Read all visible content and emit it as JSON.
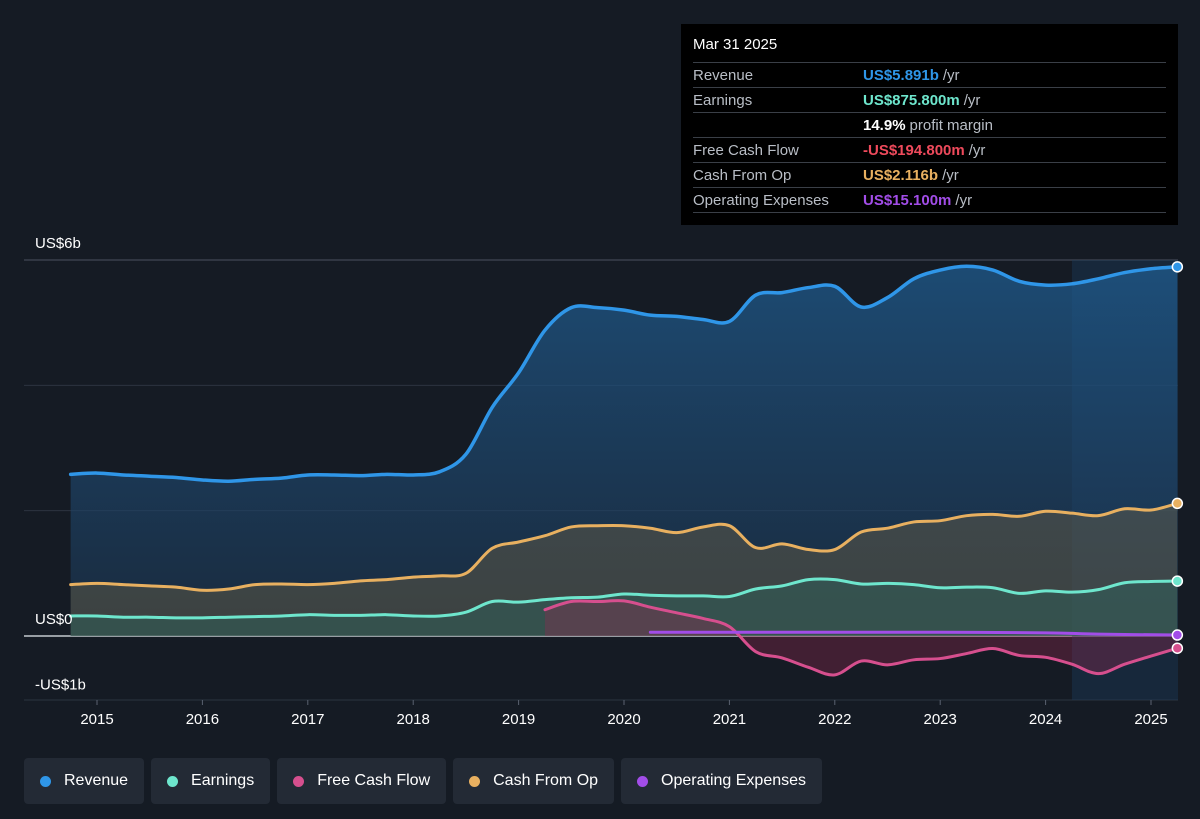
{
  "tooltip": {
    "date": "Mar 31 2025",
    "rows": [
      {
        "label": "Revenue",
        "value": "US$5.891b",
        "suffix": "/yr",
        "color": "#2f96e8"
      },
      {
        "label": "Earnings",
        "value": "US$875.800m",
        "suffix": "/yr",
        "color": "#6ee6cd"
      },
      {
        "label": "",
        "value": "14.9%",
        "suffix": "profit margin",
        "color": "#ffffff"
      },
      {
        "label": "Free Cash Flow",
        "value": "-US$194.800m",
        "suffix": "/yr",
        "color": "#ef4a5c"
      },
      {
        "label": "Cash From Op",
        "value": "US$2.116b",
        "suffix": "/yr",
        "color": "#e8b060"
      },
      {
        "label": "Operating Expenses",
        "value": "US$15.100m",
        "suffix": "/yr",
        "color": "#a24de8"
      }
    ]
  },
  "legend": [
    {
      "label": "Revenue",
      "color": "#2f96e8"
    },
    {
      "label": "Earnings",
      "color": "#6ee6cd"
    },
    {
      "label": "Free Cash Flow",
      "color": "#d64f8e"
    },
    {
      "label": "Cash From Op",
      "color": "#e8b060"
    },
    {
      "label": "Operating Expenses",
      "color": "#a24de8"
    }
  ],
  "chart_data": {
    "type": "area",
    "y_tick_labels": [
      "US$6b",
      "US$0",
      "-US$1b"
    ],
    "ylim": [
      -1,
      6
    ],
    "xlim": [
      2014.45,
      2025.25
    ],
    "x_ticks": [
      2015,
      2016,
      2017,
      2018,
      2019,
      2020,
      2021,
      2022,
      2023,
      2024,
      2025
    ],
    "x_tick_labels": [
      "2015",
      "2016",
      "2017",
      "2018",
      "2019",
      "2020",
      "2021",
      "2022",
      "2023",
      "2024",
      "2025"
    ],
    "forecast_start": 2024.25,
    "series": [
      {
        "name": "Revenue",
        "color": "#2f96e8",
        "fill": true,
        "points": [
          [
            2014.75,
            2.58
          ],
          [
            2015.0,
            2.6
          ],
          [
            2015.25,
            2.57
          ],
          [
            2015.5,
            2.55
          ],
          [
            2015.75,
            2.53
          ],
          [
            2016.0,
            2.49
          ],
          [
            2016.25,
            2.47
          ],
          [
            2016.5,
            2.5
          ],
          [
            2016.75,
            2.52
          ],
          [
            2017.0,
            2.57
          ],
          [
            2017.25,
            2.57
          ],
          [
            2017.5,
            2.56
          ],
          [
            2017.75,
            2.58
          ],
          [
            2018.0,
            2.57
          ],
          [
            2018.25,
            2.62
          ],
          [
            2018.5,
            2.9
          ],
          [
            2018.75,
            3.65
          ],
          [
            2019.0,
            4.2
          ],
          [
            2019.25,
            4.88
          ],
          [
            2019.5,
            5.24
          ],
          [
            2019.75,
            5.24
          ],
          [
            2020.0,
            5.2
          ],
          [
            2020.25,
            5.12
          ],
          [
            2020.5,
            5.1
          ],
          [
            2020.75,
            5.05
          ],
          [
            2021.0,
            5.02
          ],
          [
            2021.25,
            5.44
          ],
          [
            2021.5,
            5.48
          ],
          [
            2021.75,
            5.56
          ],
          [
            2022.0,
            5.58
          ],
          [
            2022.25,
            5.25
          ],
          [
            2022.5,
            5.4
          ],
          [
            2022.75,
            5.7
          ],
          [
            2023.0,
            5.84
          ],
          [
            2023.25,
            5.9
          ],
          [
            2023.5,
            5.84
          ],
          [
            2023.75,
            5.66
          ],
          [
            2024.0,
            5.6
          ],
          [
            2024.25,
            5.62
          ],
          [
            2024.5,
            5.7
          ],
          [
            2024.75,
            5.8
          ],
          [
            2025.0,
            5.86
          ],
          [
            2025.25,
            5.891
          ]
        ]
      },
      {
        "name": "Cash From Op",
        "color": "#e8b060",
        "fill": true,
        "points": [
          [
            2014.75,
            0.82
          ],
          [
            2015.0,
            0.84
          ],
          [
            2015.25,
            0.82
          ],
          [
            2015.5,
            0.8
          ],
          [
            2015.75,
            0.78
          ],
          [
            2016.0,
            0.73
          ],
          [
            2016.25,
            0.75
          ],
          [
            2016.5,
            0.82
          ],
          [
            2016.75,
            0.83
          ],
          [
            2017.0,
            0.82
          ],
          [
            2017.25,
            0.84
          ],
          [
            2017.5,
            0.88
          ],
          [
            2017.75,
            0.9
          ],
          [
            2018.0,
            0.94
          ],
          [
            2018.25,
            0.96
          ],
          [
            2018.5,
            1.0
          ],
          [
            2018.75,
            1.4
          ],
          [
            2019.0,
            1.5
          ],
          [
            2019.25,
            1.6
          ],
          [
            2019.5,
            1.74
          ],
          [
            2019.75,
            1.76
          ],
          [
            2020.0,
            1.76
          ],
          [
            2020.25,
            1.72
          ],
          [
            2020.5,
            1.65
          ],
          [
            2020.75,
            1.74
          ],
          [
            2021.0,
            1.76
          ],
          [
            2021.25,
            1.41
          ],
          [
            2021.5,
            1.47
          ],
          [
            2021.75,
            1.38
          ],
          [
            2022.0,
            1.38
          ],
          [
            2022.25,
            1.66
          ],
          [
            2022.5,
            1.72
          ],
          [
            2022.75,
            1.82
          ],
          [
            2023.0,
            1.84
          ],
          [
            2023.25,
            1.92
          ],
          [
            2023.5,
            1.94
          ],
          [
            2023.75,
            1.91
          ],
          [
            2024.0,
            1.99
          ],
          [
            2024.25,
            1.96
          ],
          [
            2024.5,
            1.92
          ],
          [
            2024.75,
            2.03
          ],
          [
            2025.0,
            2.01
          ],
          [
            2025.25,
            2.116
          ]
        ]
      },
      {
        "name": "Earnings",
        "color": "#6ee6cd",
        "fill": true,
        "points": [
          [
            2014.75,
            0.32
          ],
          [
            2015.0,
            0.32
          ],
          [
            2015.25,
            0.3
          ],
          [
            2015.5,
            0.3
          ],
          [
            2015.75,
            0.29
          ],
          [
            2016.0,
            0.29
          ],
          [
            2016.25,
            0.3
          ],
          [
            2016.5,
            0.31
          ],
          [
            2016.75,
            0.32
          ],
          [
            2017.0,
            0.34
          ],
          [
            2017.25,
            0.33
          ],
          [
            2017.5,
            0.33
          ],
          [
            2017.75,
            0.34
          ],
          [
            2018.0,
            0.32
          ],
          [
            2018.25,
            0.32
          ],
          [
            2018.5,
            0.38
          ],
          [
            2018.75,
            0.55
          ],
          [
            2019.0,
            0.54
          ],
          [
            2019.25,
            0.58
          ],
          [
            2019.5,
            0.61
          ],
          [
            2019.75,
            0.62
          ],
          [
            2020.0,
            0.67
          ],
          [
            2020.25,
            0.65
          ],
          [
            2020.5,
            0.64
          ],
          [
            2020.75,
            0.64
          ],
          [
            2021.0,
            0.63
          ],
          [
            2021.25,
            0.75
          ],
          [
            2021.5,
            0.8
          ],
          [
            2021.75,
            0.9
          ],
          [
            2022.0,
            0.9
          ],
          [
            2022.25,
            0.83
          ],
          [
            2022.5,
            0.84
          ],
          [
            2022.75,
            0.82
          ],
          [
            2023.0,
            0.77
          ],
          [
            2023.25,
            0.78
          ],
          [
            2023.5,
            0.77
          ],
          [
            2023.75,
            0.68
          ],
          [
            2024.0,
            0.72
          ],
          [
            2024.25,
            0.7
          ],
          [
            2024.5,
            0.74
          ],
          [
            2024.75,
            0.85
          ],
          [
            2025.0,
            0.87
          ],
          [
            2025.25,
            0.876
          ]
        ]
      },
      {
        "name": "Free Cash Flow",
        "color": "#d64f8e",
        "fill": true,
        "points": [
          [
            2019.25,
            0.42
          ],
          [
            2019.5,
            0.55
          ],
          [
            2019.75,
            0.55
          ],
          [
            2020.0,
            0.56
          ],
          [
            2020.25,
            0.46
          ],
          [
            2020.5,
            0.37
          ],
          [
            2020.75,
            0.28
          ],
          [
            2021.0,
            0.15
          ],
          [
            2021.25,
            -0.25
          ],
          [
            2021.5,
            -0.35
          ],
          [
            2021.75,
            -0.5
          ],
          [
            2022.0,
            -0.62
          ],
          [
            2022.25,
            -0.4
          ],
          [
            2022.5,
            -0.46
          ],
          [
            2022.75,
            -0.38
          ],
          [
            2023.0,
            -0.36
          ],
          [
            2023.25,
            -0.28
          ],
          [
            2023.5,
            -0.2
          ],
          [
            2023.75,
            -0.31
          ],
          [
            2024.0,
            -0.34
          ],
          [
            2024.25,
            -0.45
          ],
          [
            2024.5,
            -0.6
          ],
          [
            2024.75,
            -0.45
          ],
          [
            2025.0,
            -0.32
          ],
          [
            2025.25,
            -0.195
          ]
        ]
      },
      {
        "name": "Operating Expenses",
        "color": "#a24de8",
        "fill": false,
        "points": [
          [
            2020.25,
            0.06
          ],
          [
            2021.0,
            0.06
          ],
          [
            2022.0,
            0.06
          ],
          [
            2023.0,
            0.06
          ],
          [
            2024.0,
            0.05
          ],
          [
            2024.5,
            0.03
          ],
          [
            2025.25,
            0.0151
          ]
        ]
      }
    ]
  }
}
